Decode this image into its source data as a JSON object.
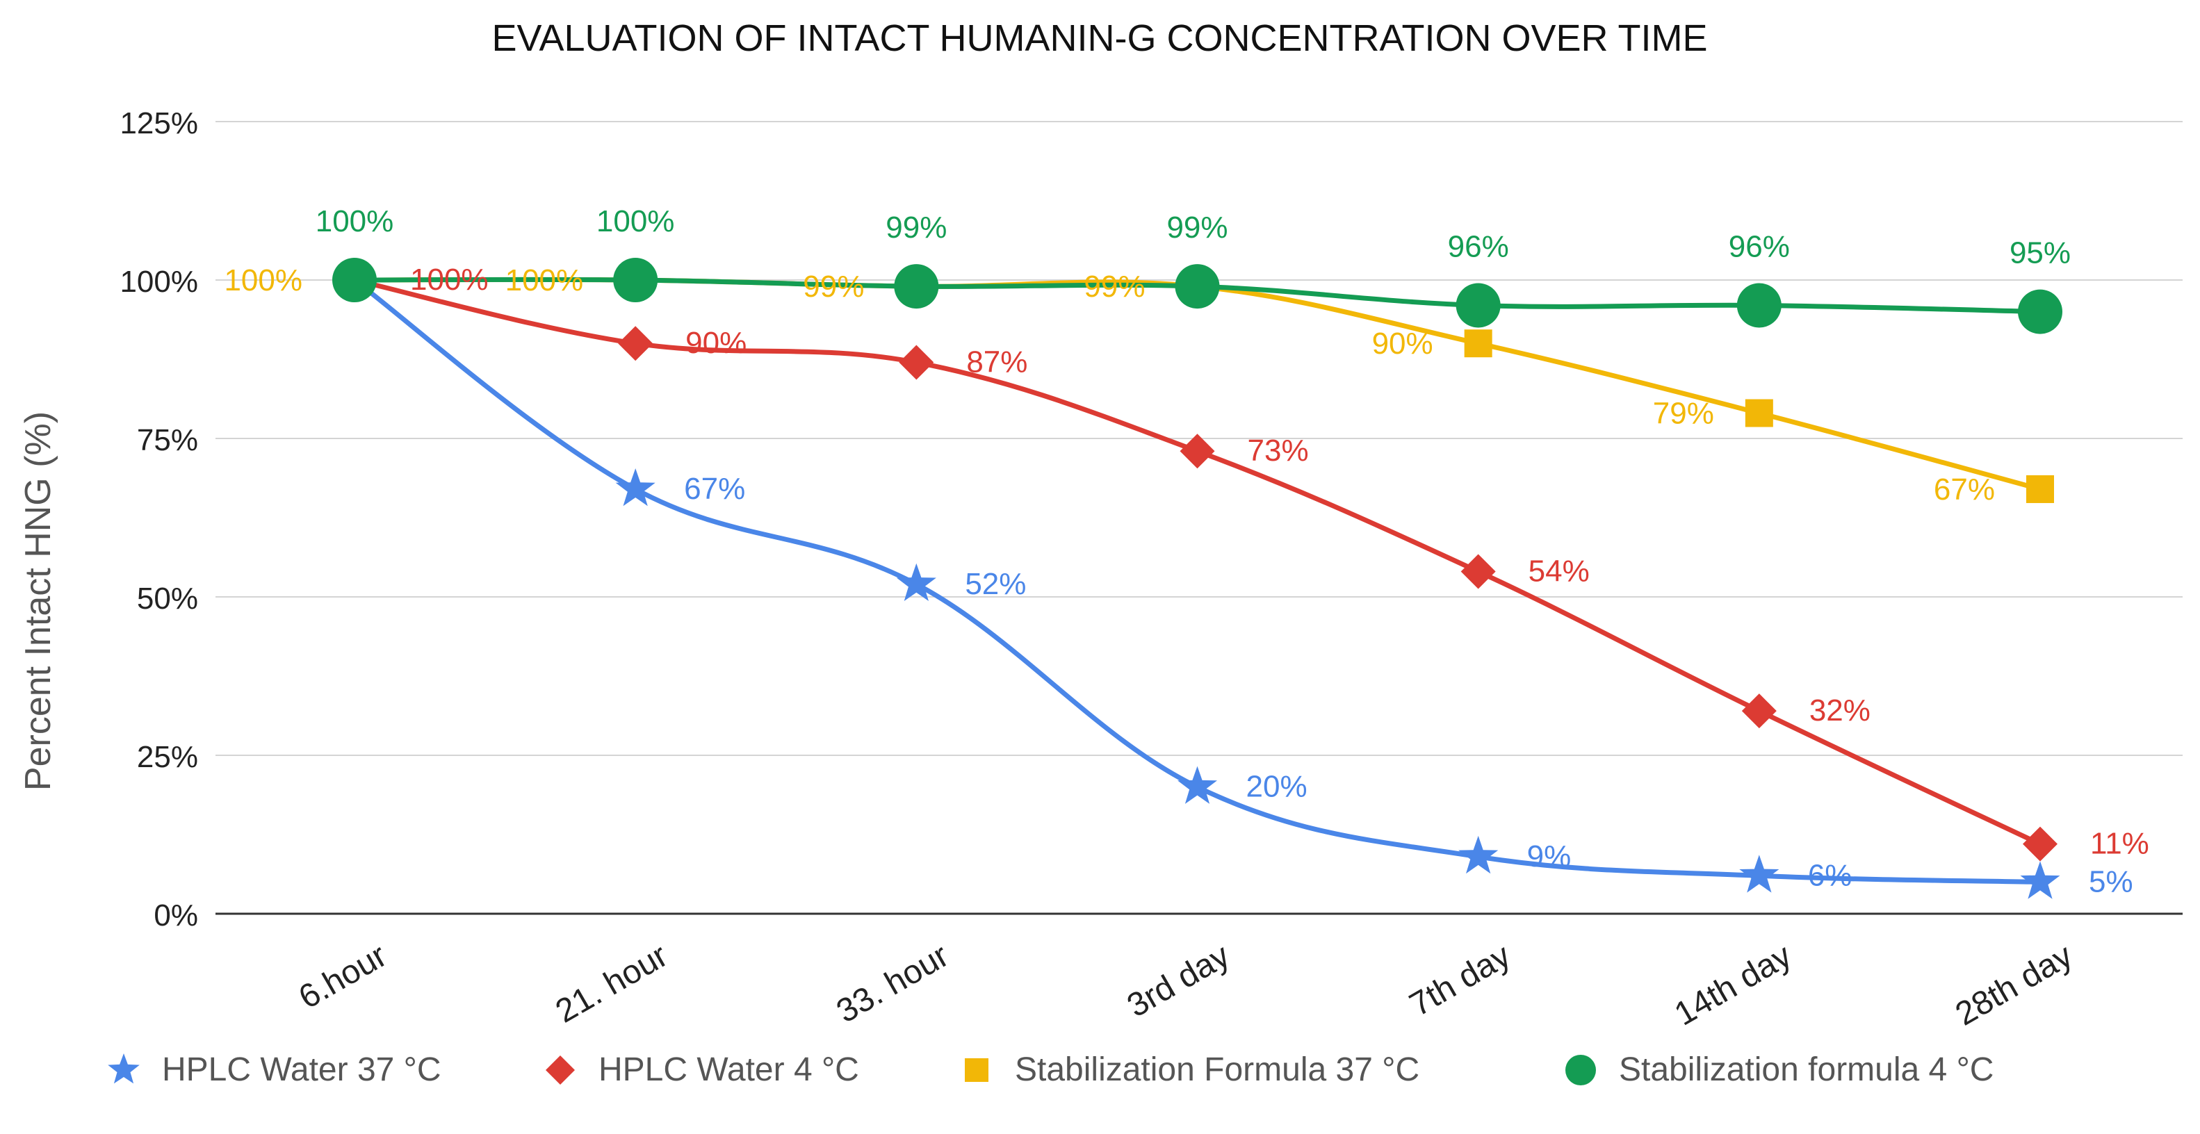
{
  "chart_data": {
    "type": "line",
    "title": "EVALUATION OF INTACT HUMANIN-G CONCENTRATION OVER TIME",
    "xlabel": "",
    "ylabel": "Percent Intact HNG (%)",
    "ylim": [
      0,
      125
    ],
    "yticks": [
      0,
      25,
      50,
      75,
      100,
      125
    ],
    "ytick_labels": [
      "0%",
      "25%",
      "50%",
      "75%",
      "100%",
      "125%"
    ],
    "categories": [
      "6.hour",
      "21. hour",
      "33. hour",
      "3rd day",
      "7th day",
      "14th day",
      "28th day"
    ],
    "grid": true,
    "legend": "bottom",
    "series": [
      {
        "name": "HPLC Water 37 °C",
        "color": "#4a86e8",
        "marker": "star",
        "values": [
          100,
          67,
          52,
          20,
          9,
          6,
          5
        ],
        "labels": [
          "",
          "67%",
          "52%",
          "20%",
          "9%",
          "6%",
          "5%"
        ]
      },
      {
        "name": "HPLC Water 4 °C",
        "color": "#dc3b33",
        "marker": "diamond",
        "values": [
          100,
          90,
          87,
          73,
          54,
          32,
          11
        ],
        "labels": [
          "100%",
          "90%",
          "87%",
          "73%",
          "54%",
          "32%",
          "11%"
        ]
      },
      {
        "name": "Stabilization Formula 37 °C",
        "color": "#f2b707",
        "marker": "square",
        "values": [
          100,
          100,
          99,
          99,
          90,
          79,
          67
        ],
        "labels": [
          "100%",
          "100%",
          "99%",
          "99%",
          "90%",
          "79%",
          "67%"
        ]
      },
      {
        "name": "Stabilization formula 4 °C",
        "color": "#149c53",
        "marker": "circle",
        "values": [
          100,
          100,
          99,
          99,
          96,
          96,
          95
        ],
        "labels": [
          "100%",
          "100%",
          "99%",
          "99%",
          "96%",
          "96%",
          "95%"
        ]
      }
    ]
  }
}
